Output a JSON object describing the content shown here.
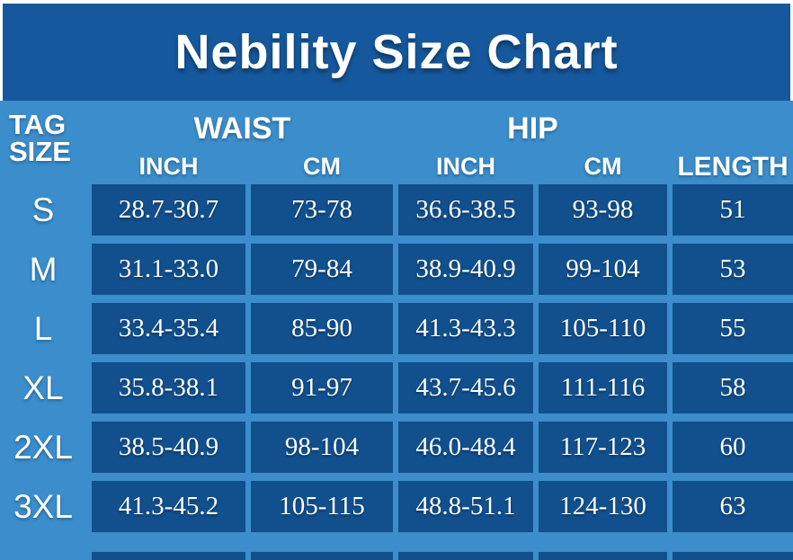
{
  "title": "Nebility Size Chart",
  "colors": {
    "title_bar": "#16589d",
    "background": "#3b8dcc",
    "cell": "#114f8d",
    "text": "#ffffff",
    "border": "#ffffff"
  },
  "table": {
    "tag_header_line1": "TAG",
    "tag_header_line2": "SIZE",
    "group_waist": "WAIST",
    "group_hip": "HIP",
    "sub_waist_inch": "INCH",
    "sub_waist_cm": "CM",
    "sub_hip_inch": "INCH",
    "sub_hip_cm": "CM",
    "length_header": "LENGTH",
    "columns": [
      "tag",
      "waist_inch",
      "waist_cm",
      "hip_inch",
      "hip_cm",
      "length"
    ],
    "rows": [
      {
        "tag": "S",
        "waist_inch": "28.7-30.7",
        "waist_cm": "73-78",
        "hip_inch": "36.6-38.5",
        "hip_cm": "93-98",
        "length": "51"
      },
      {
        "tag": "M",
        "waist_inch": "31.1-33.0",
        "waist_cm": "79-84",
        "hip_inch": "38.9-40.9",
        "hip_cm": "99-104",
        "length": "53"
      },
      {
        "tag": "L",
        "waist_inch": "33.4-35.4",
        "waist_cm": "85-90",
        "hip_inch": "41.3-43.3",
        "hip_cm": "105-110",
        "length": "55"
      },
      {
        "tag": "XL",
        "waist_inch": "35.8-38.1",
        "waist_cm": "91-97",
        "hip_inch": "43.7-45.6",
        "hip_cm": "111-116",
        "length": "58"
      },
      {
        "tag": "2XL",
        "waist_inch": "38.5-40.9",
        "waist_cm": "98-104",
        "hip_inch": "46.0-48.4",
        "hip_cm": "117-123",
        "length": "60"
      },
      {
        "tag": "3XL",
        "waist_inch": "41.3-45.2",
        "waist_cm": "105-115",
        "hip_inch": "48.8-51.1",
        "hip_cm": "124-130",
        "length": "63"
      }
    ]
  }
}
